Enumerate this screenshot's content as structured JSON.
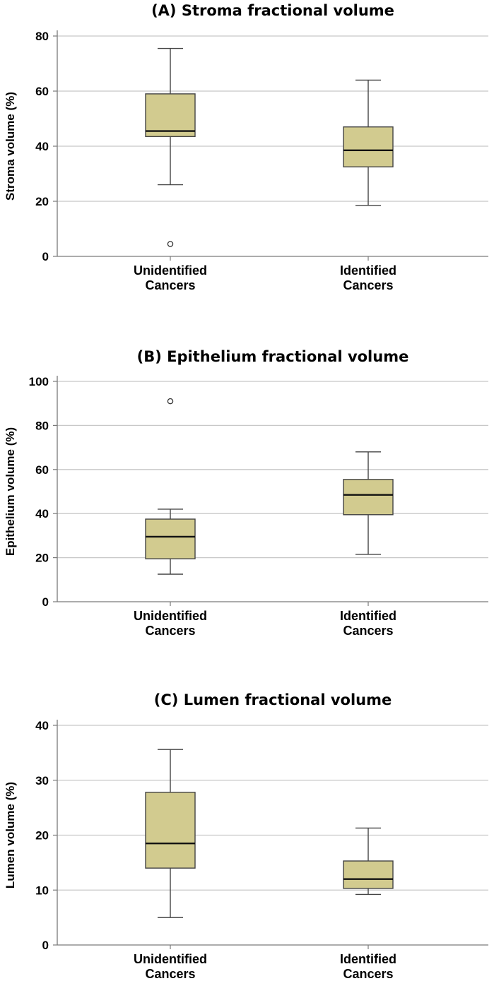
{
  "chart_data": [
    {
      "type": "boxplot",
      "title": "(A) Stroma fractional volume",
      "ylabel": "Stroma volume (%)",
      "ylim": [
        0,
        80
      ],
      "yticks": [
        0,
        20,
        40,
        60,
        80
      ],
      "grid": true,
      "box_color": "#d2cb8f",
      "categories": [
        {
          "line1": "Unidentified",
          "line2": "Cancers"
        },
        {
          "line1": "Identified",
          "line2": "Cancers"
        }
      ],
      "boxes": [
        {
          "min": 26,
          "q1": 43.5,
          "median": 45.5,
          "q3": 59,
          "max": 75.5,
          "outliers": [
            4.5
          ]
        },
        {
          "min": 18.5,
          "q1": 32.5,
          "median": 38.5,
          "q3": 47,
          "max": 64,
          "outliers": []
        }
      ]
    },
    {
      "type": "boxplot",
      "title": "(B) Epithelium fractional volume",
      "ylabel": "Epithelium volume (%)",
      "ylim": [
        0,
        100
      ],
      "yticks": [
        0,
        20,
        40,
        60,
        80,
        100
      ],
      "grid": true,
      "box_color": "#d2cb8f",
      "categories": [
        {
          "line1": "Unidentified",
          "line2": "Cancers"
        },
        {
          "line1": "Identified",
          "line2": "Cancers"
        }
      ],
      "boxes": [
        {
          "min": 12.5,
          "q1": 19.5,
          "median": 29.5,
          "q3": 37.5,
          "max": 42,
          "outliers": [
            91
          ]
        },
        {
          "min": 21.5,
          "q1": 39.5,
          "median": 48.5,
          "q3": 55.5,
          "max": 68,
          "outliers": []
        }
      ]
    },
    {
      "type": "boxplot",
      "title": "(C) Lumen fractional volume",
      "ylabel": "Lumen volume (%)",
      "ylim": [
        0,
        40
      ],
      "yticks": [
        0,
        10,
        20,
        30,
        40
      ],
      "grid": true,
      "box_color": "#d2cb8f",
      "categories": [
        {
          "line1": "Unidentified",
          "line2": "Cancers"
        },
        {
          "line1": "Identified",
          "line2": "Cancers"
        }
      ],
      "boxes": [
        {
          "min": 5,
          "q1": 14,
          "median": 18.5,
          "q3": 27.8,
          "max": 35.6,
          "outliers": []
        },
        {
          "min": 9.2,
          "q1": 10.3,
          "median": 12,
          "q3": 15.3,
          "max": 21.3,
          "outliers": []
        }
      ]
    }
  ]
}
